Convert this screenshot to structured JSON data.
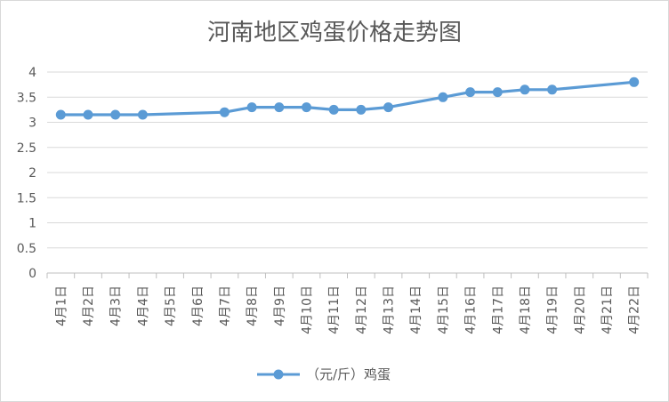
{
  "chart_data": {
    "type": "line",
    "title": "河南地区鸡蛋价格走势图",
    "categories": [
      "4月1日",
      "4月2日",
      "4月3日",
      "4月4日",
      "4月5日",
      "4月6日",
      "4月7日",
      "4月8日",
      "4月9日",
      "4月10日",
      "4月11日",
      "4月12日",
      "4月13日",
      "4月14日",
      "4月15日",
      "4月16日",
      "4月17日",
      "4月18日",
      "4月19日",
      "4月20日",
      "4月21日",
      "4月22日"
    ],
    "series": [
      {
        "name": "（元/斤）鸡蛋",
        "color": "#5b9bd5",
        "values": [
          3.15,
          3.15,
          3.15,
          3.15,
          null,
          null,
          3.2,
          3.3,
          3.3,
          3.3,
          3.25,
          3.25,
          3.3,
          null,
          3.5,
          3.6,
          3.6,
          3.65,
          3.65,
          null,
          null,
          3.8
        ]
      }
    ],
    "ylim": [
      0,
      4
    ],
    "yticks": [
      "0",
      "0.5",
      "1",
      "1.5",
      "2",
      "2.5",
      "3",
      "3.5",
      "4"
    ],
    "grid": true,
    "legend_position": "bottom"
  }
}
